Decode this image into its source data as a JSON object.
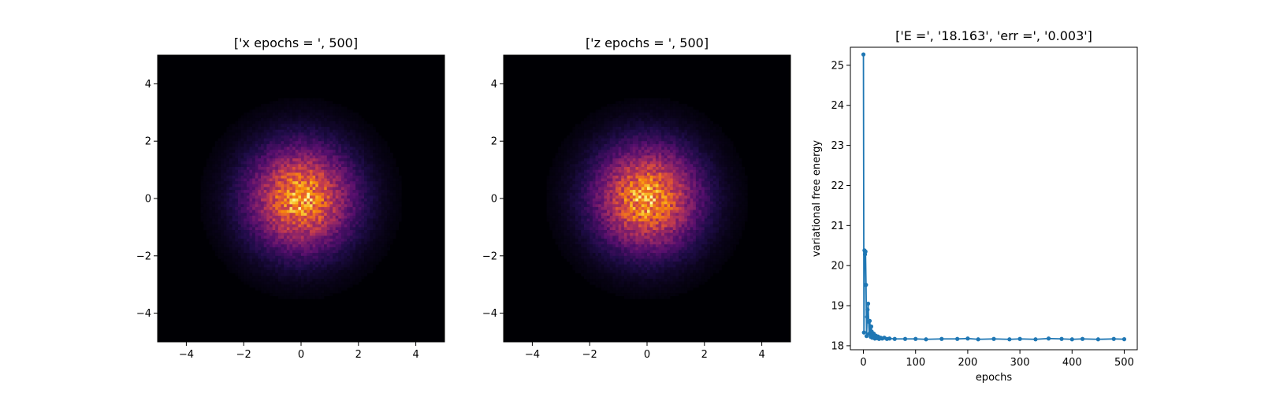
{
  "chart_data": [
    {
      "type": "heatmap",
      "title": "['x epochs = ', 500]",
      "xlim": [
        -5,
        5
      ],
      "ylim": [
        -5,
        5
      ],
      "xticks": [
        -4,
        -2,
        0,
        2,
        4
      ],
      "yticks": [
        -4,
        -2,
        0,
        2,
        4
      ],
      "xlabel": "",
      "ylabel": "",
      "bins": 100,
      "distribution": "2D standard normal histogram centered at (0, 0)",
      "colormap": "inferno",
      "grid": false
    },
    {
      "type": "heatmap",
      "title": "['z epochs = ', 500]",
      "xlim": [
        -5,
        5
      ],
      "ylim": [
        -5,
        5
      ],
      "xticks": [
        -4,
        -2,
        0,
        2,
        4
      ],
      "yticks": [
        -4,
        -2,
        0,
        2,
        4
      ],
      "xlabel": "",
      "ylabel": "",
      "bins": 100,
      "distribution": "2D standard normal histogram centered at (0, 0)",
      "colormap": "inferno",
      "grid": false
    },
    {
      "type": "line",
      "title": "['E =', '18.163', 'err =', '0.003']",
      "xlabel": "epochs",
      "ylabel": "variational free energy",
      "xlim": [
        -25,
        525
      ],
      "ylim": [
        17.9,
        25.45
      ],
      "xticks": [
        0,
        100,
        200,
        300,
        400,
        500
      ],
      "yticks": [
        18,
        19,
        20,
        21,
        22,
        23,
        24,
        25
      ],
      "color": "#1f77b4",
      "marker": "circle",
      "grid": false,
      "series": [
        {
          "x": [
            0,
            1,
            2,
            3,
            4,
            5,
            6,
            7,
            8,
            9,
            10,
            11,
            12,
            13,
            14,
            15,
            16,
            17,
            18,
            19,
            20,
            22,
            24,
            26,
            28,
            30,
            33,
            36,
            40,
            45,
            50,
            60,
            80,
            100,
            120,
            150,
            180,
            200,
            220,
            250,
            280,
            300,
            330,
            355,
            380,
            400,
            420,
            450,
            480,
            500
          ],
          "values": [
            25.27,
            18.33,
            20.38,
            20.28,
            20.35,
            19.52,
            18.24,
            18.72,
            18.9,
            19.05,
            18.6,
            18.3,
            18.62,
            18.48,
            18.22,
            18.48,
            18.35,
            18.2,
            18.28,
            18.22,
            18.3,
            18.18,
            18.25,
            18.19,
            18.23,
            18.17,
            18.2,
            18.18,
            18.2,
            18.17,
            18.18,
            18.17,
            18.17,
            18.17,
            18.16,
            18.17,
            18.17,
            18.18,
            18.16,
            18.17,
            18.16,
            18.17,
            18.16,
            18.18,
            18.17,
            18.16,
            18.17,
            18.16,
            18.17,
            18.163
          ]
        }
      ]
    }
  ]
}
